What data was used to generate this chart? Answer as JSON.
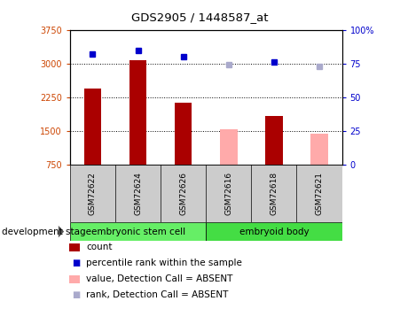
{
  "title": "GDS2905 / 1448587_at",
  "samples": [
    "GSM72622",
    "GSM72624",
    "GSM72626",
    "GSM72616",
    "GSM72618",
    "GSM72621"
  ],
  "bar_values": [
    2450,
    3080,
    2130,
    1540,
    1820,
    1430
  ],
  "bar_absent": [
    false,
    false,
    false,
    true,
    false,
    true
  ],
  "rank_values": [
    82,
    85,
    80,
    74,
    76,
    73
  ],
  "rank_absent": [
    false,
    false,
    false,
    true,
    false,
    true
  ],
  "groups": [
    {
      "label": "embryonic stem cell",
      "start": 0,
      "end": 3,
      "color": "#66EE66"
    },
    {
      "label": "embryoid body",
      "start": 3,
      "end": 6,
      "color": "#44DD44"
    }
  ],
  "ymin": 750,
  "ymax": 3750,
  "yticks": [
    750,
    1500,
    2250,
    3000,
    3750
  ],
  "ytick_labels": [
    "750",
    "1500",
    "2250",
    "3000",
    "3750"
  ],
  "right_yticks": [
    0,
    25,
    50,
    75,
    100
  ],
  "right_ytick_labels": [
    "0",
    "25",
    "50",
    "75",
    "100%"
  ],
  "bar_color_present": "#AA0000",
  "bar_color_absent": "#FFAAAA",
  "rank_color_present": "#0000CC",
  "rank_color_absent": "#AAAACC",
  "group_label": "development stage",
  "left_axis_color": "#CC4400",
  "right_axis_color": "#0000CC",
  "sample_box_color": "#CCCCCC",
  "legend_items": [
    {
      "label": "count",
      "color": "#AA0000",
      "is_rank": false
    },
    {
      "label": "percentile rank within the sample",
      "color": "#0000CC",
      "is_rank": true
    },
    {
      "label": "value, Detection Call = ABSENT",
      "color": "#FFAAAA",
      "is_rank": false
    },
    {
      "label": "rank, Detection Call = ABSENT",
      "color": "#AAAACC",
      "is_rank": true
    }
  ]
}
